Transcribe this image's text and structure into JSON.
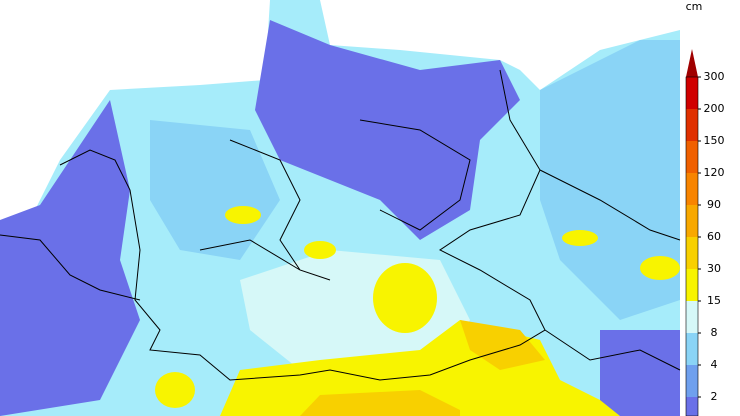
{
  "legend": {
    "unit": "cm",
    "labels": [
      "2",
      "4",
      "8",
      "15",
      "30",
      "60",
      "90",
      "120",
      "150",
      "200",
      "300"
    ],
    "colors": [
      "#6a70e8",
      "#6fa0ee",
      "#8ad4f6",
      "#d6f8f8",
      "#f8f400",
      "#f8d000",
      "#f8a800",
      "#f88400",
      "#f06000",
      "#e03000",
      "#d00000",
      "#a00000"
    ]
  }
}
